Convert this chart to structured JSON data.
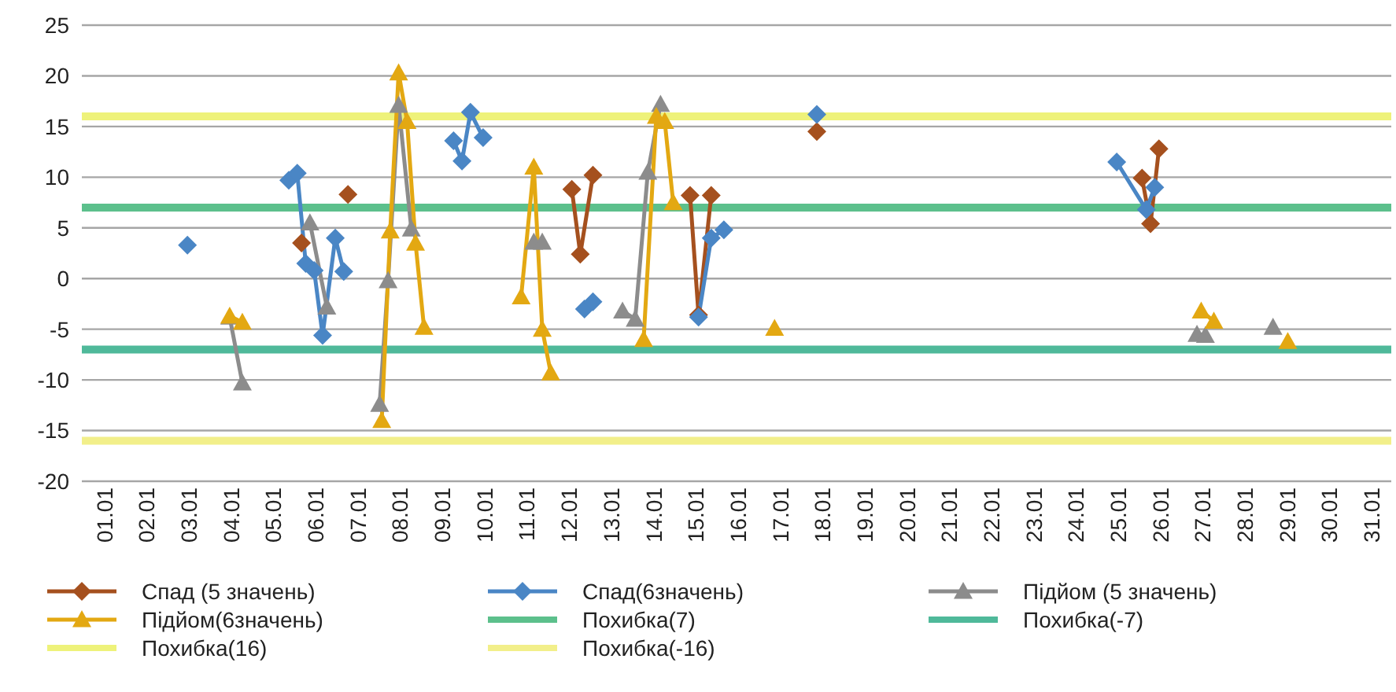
{
  "chart_data": {
    "type": "line",
    "xlim": [
      "--01-01T00:00",
      "--02-01T00:00"
    ],
    "xticks": [
      {
        "value": "--01-01T12:00",
        "label": "01.01"
      },
      {
        "value": "--01-02T12:00",
        "label": "02.01"
      },
      {
        "value": "--01-03T12:00",
        "label": "03.01"
      },
      {
        "value": "--01-04T12:00",
        "label": "04.01"
      },
      {
        "value": "--01-05T12:00",
        "label": "05.01"
      },
      {
        "value": "--01-06T12:00",
        "label": "06.01"
      },
      {
        "value": "--01-07T12:00",
        "label": "07.01"
      },
      {
        "value": "--01-08T12:00",
        "label": "08.01"
      },
      {
        "value": "--01-09T12:00",
        "label": "09.01"
      },
      {
        "value": "--01-10T12:00",
        "label": "10.01"
      },
      {
        "value": "--01-11T12:00",
        "label": "11.01"
      },
      {
        "value": "--01-12T12:00",
        "label": "12.01"
      },
      {
        "value": "--01-13T12:00",
        "label": "13.01"
      },
      {
        "value": "--01-14T12:00",
        "label": "14.01"
      },
      {
        "value": "--01-15T12:00",
        "label": "15.01"
      },
      {
        "value": "--01-16T12:00",
        "label": "16.01"
      },
      {
        "value": "--01-17T12:00",
        "label": "17.01"
      },
      {
        "value": "--01-18T12:00",
        "label": "18.01"
      },
      {
        "value": "--01-19T12:00",
        "label": "19.01"
      },
      {
        "value": "--01-20T12:00",
        "label": "20.01"
      },
      {
        "value": "--01-21T12:00",
        "label": "21.01"
      },
      {
        "value": "--01-22T12:00",
        "label": "22.01"
      },
      {
        "value": "--01-23T12:00",
        "label": "23.01"
      },
      {
        "value": "--01-24T12:00",
        "label": "24.01"
      },
      {
        "value": "--01-25T12:00",
        "label": "25.01"
      },
      {
        "value": "--01-26T12:00",
        "label": "26.01"
      },
      {
        "value": "--01-27T12:00",
        "label": "27.01"
      },
      {
        "value": "--01-28T12:00",
        "label": "28.01"
      },
      {
        "value": "--01-29T12:00",
        "label": "29.01"
      },
      {
        "value": "--01-30T12:00",
        "label": "30.01"
      },
      {
        "value": "--01-31T12:00",
        "label": "31.01"
      }
    ],
    "ylim": [
      -20,
      25
    ],
    "yticks": [
      -20,
      -15,
      -10,
      -5,
      0,
      5,
      10,
      15,
      20,
      25
    ],
    "grid": "y",
    "legend": "bottom",
    "series": [
      {
        "name": "Спад (5 значень)",
        "color": "#a5501e",
        "marker": "diamond",
        "x": [
          "--01-06T04:48",
          "--01-06T12:00",
          "--01-07T07:12",
          "--01-07T12:00",
          "--01-12T14:24",
          "--01-12T19:12",
          "--01-13T02:24",
          "--01-13T12:00",
          "--01-15T09:36",
          "--01-15T14:24",
          "--01-15T21:36",
          "--01-16T12:00",
          "--01-18T09:36",
          "--01-20T12:00",
          "--01-26T02:24",
          "--01-26T07:12",
          "--01-26T12:00"
        ],
        "values": [
          3.5,
          null,
          8.3,
          null,
          8.8,
          2.4,
          10.2,
          null,
          8.2,
          -3.6,
          8.2,
          null,
          14.5,
          null,
          9.9,
          5.4,
          12.8
        ]
      },
      {
        "name": "Спад(6значень)",
        "color": "#4a86c5",
        "marker": "diamond",
        "x": [
          "--01-03T12:00",
          "--01-04T12:00",
          "--01-05T21:36",
          "--01-06T02:24",
          "--01-06T07:12",
          "--01-06T12:00",
          "--01-06T16:48",
          "--01-07T00:00",
          "--01-07T04:48",
          "--01-08T12:00",
          "--01-09T19:12",
          "--01-10T00:00",
          "--01-10T04:48",
          "--01-10T12:00",
          "--01-11T12:00",
          "--01-12T21:36",
          "--01-13T02:24",
          "--01-13T12:00",
          "--01-15T14:24",
          "--01-15T21:36",
          "--01-16T04:48",
          "--01-17T00:00",
          "--01-18T09:36",
          "--01-20T12:00",
          "--01-25T12:00",
          "--01-26T04:48",
          "--01-26T09:36"
        ],
        "values": [
          3.3,
          null,
          9.7,
          10.4,
          1.5,
          0.8,
          -5.6,
          4.0,
          0.7,
          null,
          13.6,
          11.6,
          16.4,
          13.9,
          null,
          -3.0,
          -2.3,
          null,
          -3.8,
          4.0,
          4.8,
          null,
          16.2,
          null,
          11.5,
          6.8,
          9.0
        ]
      },
      {
        "name": "Підйом (5 значень)",
        "color": "#8c8c8c",
        "marker": "triangle",
        "x": [
          "--01-04T12:00",
          "--01-04T19:12",
          "--01-05T12:00",
          "--01-06T09:36",
          "--01-06T19:12",
          "--01-07T12:00",
          "--01-08T01:12",
          "--01-08T06:00",
          "--01-08T12:00",
          "--01-08T19:12",
          "--01-09T12:00",
          "--01-11T16:48",
          "--01-11T21:36",
          "--01-12T12:00",
          "--01-13T19:12",
          "--01-14T02:24",
          "--01-14T09:36",
          "--01-14T16:48",
          "--01-15T12:00",
          "--01-27T09:36",
          "--01-27T14:24",
          "--01-28T12:00",
          "--01-29T04:48"
        ],
        "values": [
          -3.8,
          -10.3,
          null,
          5.5,
          -2.8,
          null,
          -12.4,
          -0.2,
          17.1,
          4.9,
          null,
          3.6,
          3.6,
          null,
          -3.2,
          -4.0,
          10.5,
          17.2,
          null,
          -5.5,
          -5.6,
          null,
          -4.8
        ]
      },
      {
        "name": "Підйом(6значень)",
        "color": "#e3a812",
        "marker": "triangle",
        "x": [
          "--01-04T12:00",
          "--01-04T19:12",
          "--01-05T12:00",
          "--01-08T02:24",
          "--01-08T07:12",
          "--01-08T12:00",
          "--01-08T16:48",
          "--01-08T21:36",
          "--01-09T02:24",
          "--01-10T00:00",
          "--01-11T09:36",
          "--01-11T16:48",
          "--01-11T21:36",
          "--01-12T02:24",
          "--01-13T00:00",
          "--01-14T07:12",
          "--01-14T14:24",
          "--01-14T19:12",
          "--01-15T00:00",
          "--01-16T00:00",
          "--01-17T09:36",
          "--01-20T12:00",
          "--01-27T12:00",
          "--01-27T19:12",
          "--01-28T12:00",
          "--01-29T13:12"
        ],
        "values": [
          -3.7,
          -4.3,
          null,
          -14.0,
          4.7,
          20.3,
          15.5,
          3.5,
          -4.8,
          null,
          -1.8,
          11.0,
          -5.0,
          -9.3,
          null,
          -6.0,
          16.0,
          15.5,
          7.5,
          null,
          -4.9,
          null,
          -3.2,
          -4.2,
          null,
          -6.2
        ]
      }
    ],
    "ref_lines": [
      {
        "axis": "y",
        "value": 7,
        "label": "Похибка(7)",
        "color": "#5cc08c"
      },
      {
        "axis": "y",
        "value": -7,
        "label": "Похибка(-7)",
        "color": "#4fb99a"
      },
      {
        "axis": "y",
        "value": 16,
        "label": "Похибка(16)",
        "color": "#eef27a"
      },
      {
        "axis": "y",
        "value": -16,
        "label": "Похибка(-16)",
        "color": "#f2ef8a"
      }
    ]
  }
}
